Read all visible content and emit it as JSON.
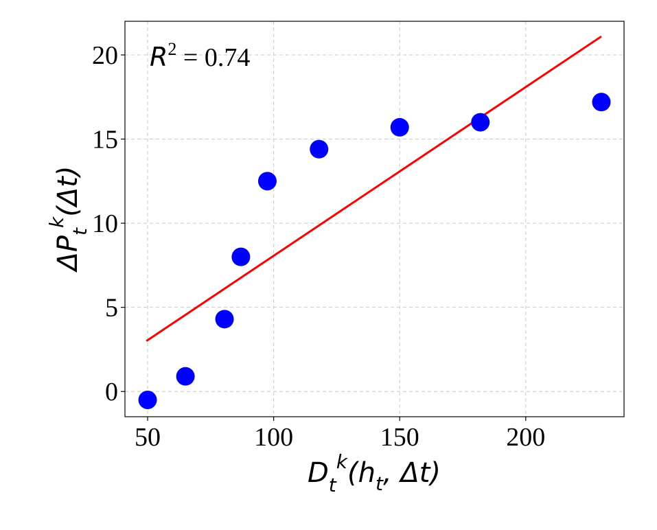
{
  "chart_data": {
    "type": "scatter",
    "title": "",
    "xlabel": "D_t^k(h_t, Δt)",
    "ylabel": "ΔP_t^k(Δt)",
    "xlim": [
      41,
      239
    ],
    "ylim": [
      -1.5,
      22
    ],
    "xticks": [
      50,
      100,
      150,
      200
    ],
    "yticks": [
      0,
      5,
      10,
      15,
      20
    ],
    "grid": true,
    "series": [
      {
        "kind": "points",
        "color": "#0000ff",
        "x": [
          50,
          65,
          80.5,
          87,
          97.5,
          118,
          150,
          182,
          230
        ],
        "y": [
          -0.5,
          0.9,
          4.3,
          8.0,
          12.5,
          14.4,
          15.7,
          16.0,
          17.2
        ]
      },
      {
        "kind": "fit-line",
        "color": "#ff0000",
        "x": [
          49.5,
          230
        ],
        "y": [
          3.0,
          21.1
        ]
      }
    ],
    "annotation": {
      "r_symbol": "R",
      "r_exponent": "2",
      "r_value": " = 0.74"
    }
  }
}
